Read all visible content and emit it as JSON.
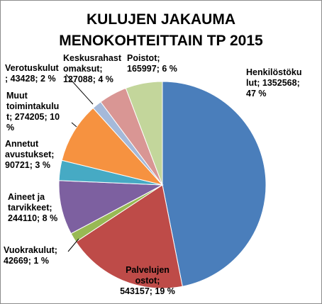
{
  "chart_data": {
    "type": "pie",
    "title_lines": [
      "KULUJEN JAKAUMA",
      "MENOKOHTEITTAIN  TP 2015"
    ],
    "series": [
      {
        "slices": [
          {
            "value": 1352568,
            "percent": 47,
            "color": "#4a7ebb",
            "label_lines": [
              "Henkilöstöku",
              "lut; 1352568;",
              "47 %"
            ]
          },
          {
            "value": 543157,
            "percent": 19,
            "color": "#be4b48",
            "label_lines": [
              "Palvelujen",
              "ostot;",
              "543157; 19 %"
            ]
          },
          {
            "value": 42669,
            "percent": 1,
            "color": "#98b954",
            "label_lines": [
              "Vuokrakulut;",
              "42669; 1 %"
            ]
          },
          {
            "value": 244110,
            "percent": 8,
            "color": "#7d60a0",
            "label_lines": [
              "Aineet ja",
              "tarvikkeet;",
              "244110; 8 %"
            ]
          },
          {
            "value": 90721,
            "percent": 3,
            "color": "#46aac4",
            "label_lines": [
              "Annetut",
              "avustukset;",
              "90721; 3 %"
            ]
          },
          {
            "value": 274205,
            "percent": 10,
            "color": "#f69240",
            "label_lines": [
              "Muut",
              "toimintakulu",
              "t; 274205; 10",
              "%"
            ]
          },
          {
            "value": 43428,
            "percent": 2,
            "color": "#a5b9d9",
            "label_lines": [
              "Verotuskulut",
              "; 43428; 2 %"
            ]
          },
          {
            "value": 127088,
            "percent": 4,
            "color": "#d99694",
            "label_lines": [
              "Keskusrahast",
              "omaksut;",
              "127088; 4 %"
            ]
          },
          {
            "value": 165997,
            "percent": 6,
            "color": "#c3d69b",
            "label_lines": [
              "Poistot;",
              "165997; 6 %"
            ]
          }
        ]
      }
    ],
    "legend": "none"
  }
}
